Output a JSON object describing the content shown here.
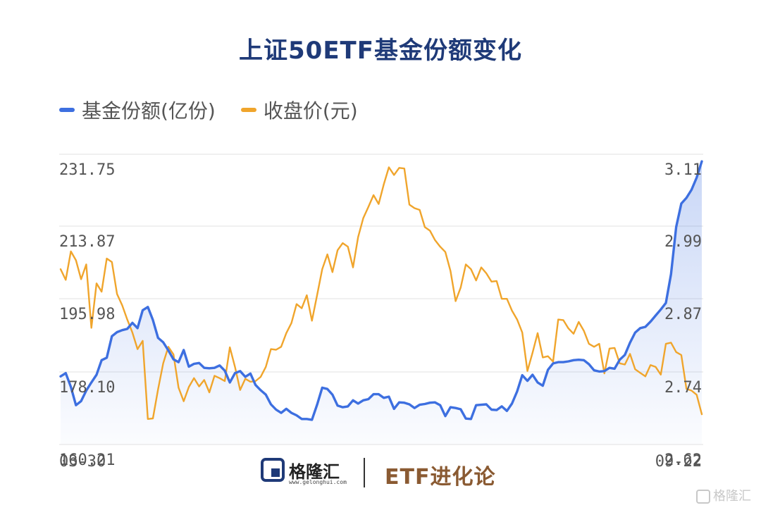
{
  "title": "上证50ETF基金份额变化",
  "legend": [
    {
      "label": "基金份额(亿份)",
      "color": "#3d6fe0"
    },
    {
      "label": "收盘价(元)",
      "color": "#f0a52c"
    }
  ],
  "footer": {
    "logo_text": "格隆汇",
    "logo_url": "www.gelonghui.com",
    "brand": "ETF进化论"
  },
  "watermark": "格隆汇",
  "chart_data": {
    "type": "line",
    "title": "上证50ETF基金份额变化",
    "x_start_label": "03-30",
    "x_end_label": "09-22",
    "y_left": {
      "ticks": [
        "231.75",
        "213.87",
        "195.98",
        "178.10",
        "160.21"
      ],
      "range": [
        160.21,
        231.75
      ]
    },
    "y_right": {
      "ticks": [
        "3.11",
        "2.99",
        "2.87",
        "2.74",
        "2.62"
      ],
      "range": [
        2.62,
        3.11
      ]
    },
    "grid": true,
    "legend_position": "top-left",
    "series": [
      {
        "name": "基金份额(亿份)",
        "axis": "left",
        "color": "#3d6fe0",
        "values": [
          177.0,
          177.8,
          174.4,
          169.9,
          170.9,
          173.5,
          175.5,
          177.4,
          181.0,
          181.6,
          186.9,
          187.9,
          188.4,
          188.7,
          190.2,
          188.9,
          193.3,
          194.1,
          190.9,
          186.5,
          185.4,
          183.4,
          181.2,
          180.5,
          183.5,
          179.4,
          180.1,
          180.3,
          179.1,
          179.0,
          179.1,
          179.7,
          178.4,
          175.5,
          177.8,
          178.3,
          176.9,
          177.7,
          174.9,
          173.6,
          172.5,
          170.1,
          168.8,
          168.0,
          169.0,
          168.0,
          167.4,
          166.5,
          166.5,
          166.3,
          170.0,
          174.2,
          173.9,
          172.5,
          169.8,
          169.4,
          169.6,
          171.1,
          170.3,
          171.1,
          171.4,
          172.6,
          172.6,
          171.7,
          172.0,
          169.0,
          170.6,
          170.5,
          170.1,
          169.2,
          170.0,
          170.2,
          170.5,
          170.6,
          169.9,
          167.2,
          169.4,
          169.2,
          168.9,
          166.6,
          166.5,
          169.9,
          170.0,
          170.1,
          168.8,
          168.7,
          169.6,
          168.5,
          170.3,
          173.3,
          177.3,
          175.9,
          177.4,
          175.5,
          174.7,
          178.6,
          180.2,
          180.5,
          180.5,
          180.7,
          181.0,
          181.1,
          181.0,
          180.0,
          178.5,
          178.2,
          178.3,
          179.1,
          178.9,
          181.1,
          182.3,
          185.3,
          187.8,
          188.9,
          189.2,
          190.5,
          192.0,
          193.5,
          195.1,
          202.2,
          213.8,
          219.6,
          221.0,
          223.0,
          226.0,
          230.0
        ]
      },
      {
        "name": "收盘价(元)",
        "axis": "right",
        "color": "#f0a52c",
        "values": [
          2.916,
          2.898,
          2.946,
          2.931,
          2.899,
          2.924,
          2.817,
          2.892,
          2.878,
          2.934,
          2.928,
          2.874,
          2.855,
          2.831,
          2.809,
          2.781,
          2.795,
          2.663,
          2.664,
          2.713,
          2.757,
          2.785,
          2.772,
          2.716,
          2.693,
          2.717,
          2.732,
          2.718,
          2.729,
          2.708,
          2.736,
          2.732,
          2.727,
          2.784,
          2.751,
          2.712,
          2.731,
          2.726,
          2.727,
          2.734,
          2.751,
          2.781,
          2.78,
          2.785,
          2.808,
          2.825,
          2.857,
          2.85,
          2.872,
          2.829,
          2.872,
          2.916,
          2.941,
          2.911,
          2.948,
          2.96,
          2.954,
          2.919,
          2.97,
          3.002,
          3.021,
          3.041,
          3.026,
          3.059,
          3.088,
          3.075,
          3.087,
          3.086,
          3.025,
          3.019,
          3.016,
          2.987,
          2.981,
          2.965,
          2.954,
          2.945,
          2.913,
          2.862,
          2.885,
          2.924,
          2.916,
          2.897,
          2.919,
          2.909,
          2.895,
          2.896,
          2.866,
          2.866,
          2.846,
          2.831,
          2.809,
          2.744,
          2.775,
          2.808,
          2.767,
          2.769,
          2.76,
          2.831,
          2.83,
          2.816,
          2.807,
          2.827,
          2.812,
          2.79,
          2.785,
          2.79,
          2.74,
          2.782,
          2.783,
          2.757,
          2.755,
          2.773,
          2.747,
          2.741,
          2.735,
          2.754,
          2.751,
          2.738,
          2.79,
          2.792,
          2.776,
          2.771,
          2.714,
          2.711,
          2.704,
          2.671
        ]
      }
    ]
  }
}
